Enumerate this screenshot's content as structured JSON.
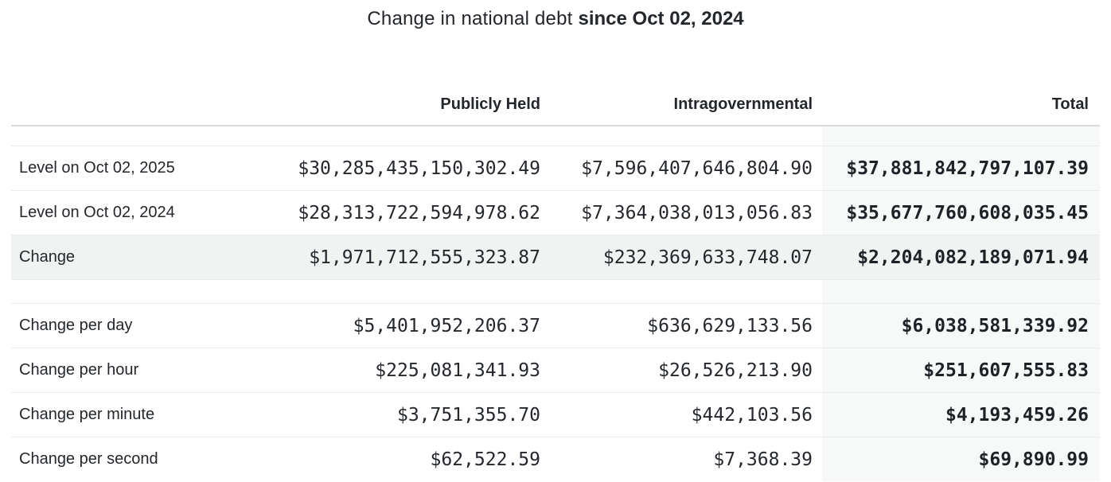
{
  "title": {
    "text": "Change in national debt",
    "emphasis": "since Oct 02, 2024"
  },
  "columns": {
    "publicly_held": "Publicly Held",
    "intragovernmental": "Intragovernmental",
    "total": "Total"
  },
  "table": {
    "sections": [
      {
        "rows": [
          {
            "label": "Level on Oct 02, 2025",
            "publicly_held": "$30,285,435,150,302.49",
            "intragovernmental": "$7,596,407,646,804.90",
            "total": "$37,881,842,797,107.39",
            "highlight": false
          },
          {
            "label": "Level on Oct 02, 2024",
            "publicly_held": "$28,313,722,594,978.62",
            "intragovernmental": "$7,364,038,013,056.83",
            "total": "$35,677,760,608,035.45",
            "highlight": false
          },
          {
            "label": "Change",
            "publicly_held": "$1,971,712,555,323.87",
            "intragovernmental": "$232,369,633,748.07",
            "total": "$2,204,082,189,071.94",
            "highlight": true
          }
        ]
      },
      {
        "rows": [
          {
            "label": "Change per day",
            "publicly_held": "$5,401,952,206.37",
            "intragovernmental": "$636,629,133.56",
            "total": "$6,038,581,339.92",
            "highlight": false
          },
          {
            "label": "Change per hour",
            "publicly_held": "$225,081,341.93",
            "intragovernmental": "$26,526,213.90",
            "total": "$251,607,555.83",
            "highlight": false
          },
          {
            "label": "Change per minute",
            "publicly_held": "$3,751,355.70",
            "intragovernmental": "$442,103.56",
            "total": "$4,193,459.26",
            "highlight": false
          },
          {
            "label": "Change per second",
            "publicly_held": "$62,522.59",
            "intragovernmental": "$7,368.39",
            "total": "$69,890.99",
            "highlight": false
          }
        ]
      }
    ]
  },
  "colors": {
    "text": "#23272c",
    "header_divider": "#d8d9da",
    "row_separator": "#e9eaeb",
    "highlight_row_bg": "#f1f2f2",
    "total_column_bg": "#f7f8f8"
  }
}
